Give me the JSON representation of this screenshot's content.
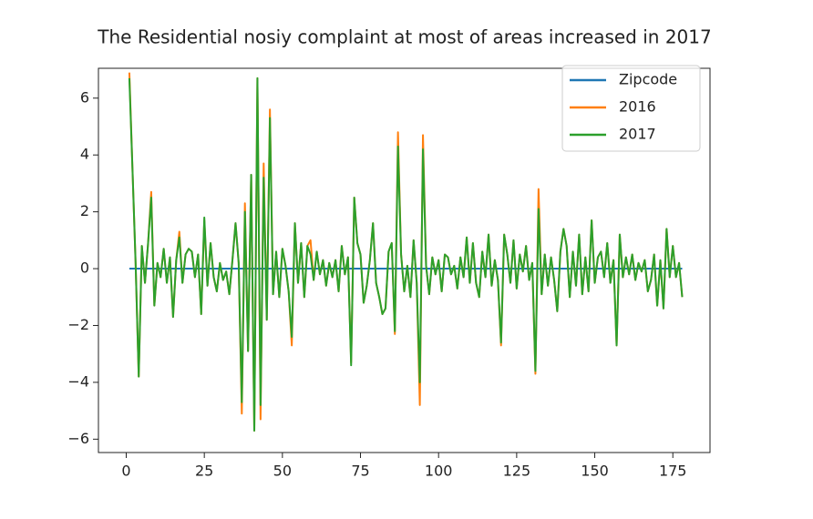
{
  "chart_data": {
    "type": "line",
    "title": "The Residential nosiy complaint at most of areas increased in 2017",
    "x": [
      1,
      2,
      3,
      4,
      5,
      6,
      7,
      8,
      9,
      10,
      11,
      12,
      13,
      14,
      15,
      16,
      17,
      18,
      19,
      20,
      21,
      22,
      23,
      24,
      25,
      26,
      27,
      28,
      29,
      30,
      31,
      32,
      33,
      34,
      35,
      36,
      37,
      38,
      39,
      40,
      41,
      42,
      43,
      44,
      45,
      46,
      47,
      48,
      49,
      50,
      51,
      52,
      53,
      54,
      55,
      56,
      57,
      58,
      59,
      60,
      61,
      62,
      63,
      64,
      65,
      66,
      67,
      68,
      69,
      70,
      71,
      72,
      73,
      74,
      75,
      76,
      77,
      78,
      79,
      80,
      81,
      82,
      83,
      84,
      85,
      86,
      87,
      88,
      89,
      90,
      91,
      92,
      93,
      94,
      95,
      96,
      97,
      98,
      99,
      100,
      101,
      102,
      103,
      104,
      105,
      106,
      107,
      108,
      109,
      110,
      111,
      112,
      113,
      114,
      115,
      116,
      117,
      118,
      119,
      120,
      121,
      122,
      123,
      124,
      125,
      126,
      127,
      128,
      129,
      130,
      131,
      132,
      133,
      134,
      135,
      136,
      137,
      138,
      139,
      140,
      141,
      142,
      143,
      144,
      145,
      146,
      147,
      148,
      149,
      150,
      151,
      152,
      153,
      154,
      155,
      156,
      157,
      158,
      159,
      160,
      161,
      162,
      163,
      164,
      165,
      166,
      167,
      168,
      169,
      170,
      171,
      172,
      173,
      174,
      175,
      176,
      177,
      178
    ],
    "series": [
      {
        "name": "Zipcode",
        "color": "#1f77b4",
        "values": [
          0,
          0,
          0,
          0,
          0,
          0,
          0,
          0,
          0,
          0,
          0,
          0,
          0,
          0,
          0,
          0,
          0,
          0,
          0,
          0,
          0,
          0,
          0,
          0,
          0,
          0,
          0,
          0,
          0,
          0,
          0,
          0,
          0,
          0,
          0,
          0,
          0,
          0,
          0,
          0,
          0,
          0,
          0,
          0,
          0,
          0,
          0,
          0,
          0,
          0,
          0,
          0,
          0,
          0,
          0,
          0,
          0,
          0,
          0,
          0,
          0,
          0,
          0,
          0,
          0,
          0,
          0,
          0,
          0,
          0,
          0,
          0,
          0,
          0,
          0,
          0,
          0,
          0,
          0,
          0,
          0,
          0,
          0,
          0,
          0,
          0,
          0,
          0,
          0,
          0,
          0,
          0,
          0,
          0,
          0,
          0,
          0,
          0,
          0,
          0,
          0,
          0,
          0,
          0,
          0,
          0,
          0,
          0,
          0,
          0,
          0,
          0,
          0,
          0,
          0,
          0,
          0,
          0,
          0,
          0,
          0,
          0,
          0,
          0,
          0,
          0,
          0,
          0,
          0,
          0,
          0,
          0,
          0,
          0,
          0,
          0,
          0,
          0,
          0,
          0,
          0,
          0,
          0,
          0,
          0,
          0,
          0,
          0,
          0,
          0,
          0,
          0,
          0,
          0,
          0,
          0,
          0,
          0,
          0,
          0,
          0,
          0,
          0,
          0,
          0,
          0,
          0,
          0,
          0,
          0,
          0,
          0,
          0,
          0,
          0,
          0,
          0,
          0
        ]
      },
      {
        "name": "2016",
        "color": "#ff7f0e",
        "values": [
          6.9,
          3.5,
          0.2,
          -3.8,
          0.8,
          -0.5,
          0.9,
          2.7,
          -1.3,
          0.2,
          -0.3,
          0.7,
          -0.5,
          0.4,
          -1.7,
          0.3,
          1.3,
          -0.5,
          0.5,
          0.7,
          0.6,
          -0.3,
          0.5,
          -1.6,
          1.7,
          -0.6,
          0.9,
          -0.3,
          -0.8,
          0.2,
          -0.4,
          -0.1,
          -0.9,
          0.3,
          1.6,
          0.2,
          -5.1,
          2.3,
          -2.9,
          3.3,
          -5.7,
          6.7,
          -5.3,
          3.7,
          -1.8,
          5.6,
          -0.9,
          0.6,
          -1.0,
          0.7,
          0.1,
          -0.8,
          -2.7,
          1.6,
          -0.5,
          0.9,
          -1.0,
          0.8,
          1.0,
          -0.4,
          0.6,
          -0.2,
          0.3,
          -0.6,
          0.2,
          -0.3,
          0.3,
          -0.8,
          0.8,
          -0.2,
          0.4,
          -3.3,
          2.5,
          0.9,
          0.5,
          -1.2,
          -0.6,
          0.3,
          1.6,
          -0.5,
          -1.0,
          -1.6,
          -1.4,
          0.6,
          0.9,
          -2.3,
          4.8,
          0.5,
          -0.8,
          0.1,
          -1.0,
          1.0,
          -0.5,
          -4.8,
          4.7,
          0.1,
          -0.9,
          0.4,
          -0.2,
          0.3,
          -0.8,
          0.5,
          0.4,
          -0.2,
          0.1,
          -0.7,
          0.4,
          -0.3,
          1.1,
          -0.5,
          0.9,
          -0.5,
          -1.0,
          0.6,
          -0.3,
          1.2,
          -0.6,
          0.3,
          -0.4,
          -2.7,
          1.2,
          0.5,
          -0.5,
          1.0,
          -0.7,
          0.5,
          -0.1,
          0.8,
          -0.4,
          0.2,
          -3.7,
          2.8,
          -0.9,
          0.5,
          -0.6,
          0.4,
          -0.4,
          -1.5,
          0.6,
          1.4,
          0.8,
          -1.0,
          0.6,
          -0.6,
          1.2,
          -0.9,
          0.4,
          -0.8,
          1.7,
          -0.5,
          0.4,
          0.6,
          -0.3,
          0.9,
          -0.5,
          0.3,
          -2.7,
          1.2,
          -0.3,
          0.4,
          -0.2,
          0.5,
          -0.4,
          0.2,
          -0.1,
          0.3,
          -0.8,
          -0.4,
          0.5,
          -1.3,
          0.3,
          -1.4,
          1.4,
          -0.3,
          0.8,
          -0.3,
          0.2,
          -1.0
        ]
      },
      {
        "name": "2017",
        "color": "#2ca02c",
        "values": [
          6.7,
          3.5,
          0.2,
          -3.8,
          0.8,
          -0.5,
          0.9,
          2.5,
          -1.3,
          0.2,
          -0.3,
          0.7,
          -0.5,
          0.4,
          -1.7,
          0.3,
          1.1,
          -0.5,
          0.5,
          0.7,
          0.6,
          -0.3,
          0.5,
          -1.6,
          1.8,
          -0.6,
          0.9,
          -0.3,
          -0.8,
          0.2,
          -0.4,
          -0.1,
          -0.9,
          0.3,
          1.6,
          0.2,
          -4.7,
          2.0,
          -2.9,
          3.3,
          -5.7,
          6.7,
          -4.8,
          3.2,
          -1.8,
          5.3,
          -0.9,
          0.6,
          -1.0,
          0.7,
          0.1,
          -0.8,
          -2.4,
          1.6,
          -0.5,
          0.9,
          -1.0,
          0.8,
          0.5,
          -0.4,
          0.6,
          -0.2,
          0.3,
          -0.6,
          0.2,
          -0.3,
          0.3,
          -0.8,
          0.8,
          -0.2,
          0.4,
          -3.4,
          2.5,
          0.9,
          0.5,
          -1.2,
          -0.6,
          0.3,
          1.6,
          -0.5,
          -1.0,
          -1.6,
          -1.4,
          0.6,
          0.9,
          -2.2,
          4.3,
          0.5,
          -0.8,
          0.1,
          -1.0,
          1.0,
          -0.5,
          -4.0,
          4.2,
          0.1,
          -0.9,
          0.4,
          -0.2,
          0.3,
          -0.8,
          0.5,
          0.4,
          -0.2,
          0.1,
          -0.7,
          0.4,
          -0.3,
          1.1,
          -0.5,
          0.9,
          -0.5,
          -1.0,
          0.6,
          -0.3,
          1.2,
          -0.6,
          0.3,
          -0.4,
          -2.6,
          1.2,
          0.5,
          -0.5,
          1.0,
          -0.7,
          0.5,
          -0.1,
          0.8,
          -0.4,
          0.2,
          -3.6,
          2.1,
          -0.9,
          0.5,
          -0.6,
          0.4,
          -0.4,
          -1.5,
          0.6,
          1.4,
          0.8,
          -1.0,
          0.6,
          -0.6,
          1.2,
          -0.9,
          0.4,
          -0.8,
          1.7,
          -0.5,
          0.4,
          0.6,
          -0.3,
          0.9,
          -0.5,
          0.3,
          -2.7,
          1.2,
          -0.3,
          0.4,
          -0.2,
          0.5,
          -0.4,
          0.2,
          -0.1,
          0.3,
          -0.8,
          -0.4,
          0.5,
          -1.3,
          0.3,
          -1.4,
          1.4,
          -0.3,
          0.8,
          -0.3,
          0.2,
          -1.0
        ]
      }
    ],
    "xlim": [
      -8.9,
      186.9
    ],
    "ylim": [
      -6.47,
      7.05
    ],
    "xticks": [
      0,
      25,
      50,
      75,
      100,
      125,
      150,
      175
    ],
    "yticks": [
      {
        "value": -6,
        "label": "−6"
      },
      {
        "value": -4,
        "label": "−4"
      },
      {
        "value": -2,
        "label": "−2"
      },
      0,
      2,
      4,
      6
    ],
    "grid": false,
    "legend": "upper right"
  }
}
